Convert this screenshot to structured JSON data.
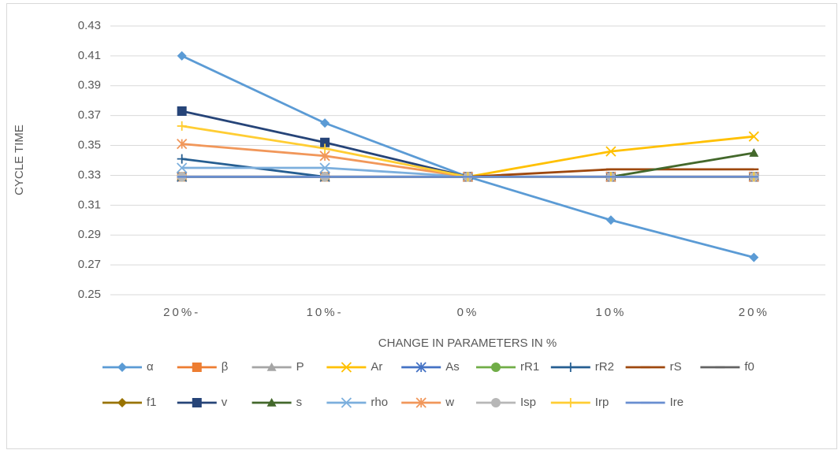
{
  "chart_data": {
    "type": "line",
    "x_label": "CHANGE IN PARAMETERS IN %",
    "y_label": "CYCLE TIME",
    "categories": [
      "20%-",
      "10%-",
      "0%",
      "10%",
      "20%"
    ],
    "ylim": [
      0.25,
      0.43
    ],
    "yticks": [
      0.25,
      0.27,
      0.29,
      0.31,
      0.33,
      0.35,
      0.37,
      0.39,
      0.41,
      0.43
    ],
    "grid": true,
    "legend": "bottom",
    "series": [
      {
        "name": "α",
        "color": "#5b9bd5",
        "marker": "diamond",
        "values": [
          0.41,
          0.365,
          0.329,
          0.3,
          0.275
        ]
      },
      {
        "name": "β",
        "color": "#ed7d31",
        "marker": "square",
        "values": [
          0.329,
          0.329,
          0.329,
          0.329,
          0.329
        ]
      },
      {
        "name": "P",
        "color": "#a5a5a5",
        "marker": "triangle",
        "values": [
          0.329,
          0.329,
          0.329,
          0.329,
          0.329
        ]
      },
      {
        "name": "Ar",
        "color": "#ffc000",
        "marker": "x",
        "values": [
          0.329,
          0.329,
          0.329,
          0.346,
          0.356
        ]
      },
      {
        "name": "As",
        "color": "#4472c4",
        "marker": "star",
        "values": [
          0.329,
          0.329,
          0.329,
          0.329,
          0.329
        ]
      },
      {
        "name": "rR1",
        "color": "#70ad47",
        "marker": "circle",
        "values": [
          0.329,
          0.329,
          0.329,
          0.329,
          0.329
        ]
      },
      {
        "name": "rR2",
        "color": "#255e91",
        "marker": "plus",
        "values": [
          0.341,
          0.329,
          0.329,
          0.329,
          0.329
        ]
      },
      {
        "name": "rS",
        "color": "#9e480e",
        "marker": "dash",
        "values": [
          0.329,
          0.329,
          0.329,
          0.334,
          0.334
        ]
      },
      {
        "name": "f0",
        "color": "#636363",
        "marker": "dash",
        "values": [
          0.329,
          0.329,
          0.329,
          0.329,
          0.329
        ]
      },
      {
        "name": "f1",
        "color": "#997300",
        "marker": "diamond",
        "values": [
          0.329,
          0.329,
          0.329,
          0.329,
          0.329
        ]
      },
      {
        "name": "v",
        "color": "#264478",
        "marker": "square",
        "values": [
          0.373,
          0.352,
          0.329,
          0.329,
          0.329
        ]
      },
      {
        "name": "s",
        "color": "#43682b",
        "marker": "triangle",
        "values": [
          0.329,
          0.329,
          0.329,
          0.329,
          0.345
        ]
      },
      {
        "name": "rho",
        "color": "#7cafdd",
        "marker": "x",
        "values": [
          0.335,
          0.335,
          0.329,
          0.329,
          0.329
        ]
      },
      {
        "name": "w",
        "color": "#f1975a",
        "marker": "star",
        "values": [
          0.351,
          0.343,
          0.329,
          0.329,
          0.329
        ]
      },
      {
        "name": "Isp",
        "color": "#b7b7b7",
        "marker": "circle",
        "values": [
          0.329,
          0.329,
          0.329,
          0.329,
          0.329
        ]
      },
      {
        "name": "Irp",
        "color": "#ffcd33",
        "marker": "plus",
        "values": [
          0.363,
          0.348,
          0.329,
          0.329,
          0.329
        ]
      },
      {
        "name": "Ire",
        "color": "#698ed0",
        "marker": "dash",
        "values": [
          0.329,
          0.329,
          0.329,
          0.329,
          0.329
        ]
      }
    ]
  }
}
